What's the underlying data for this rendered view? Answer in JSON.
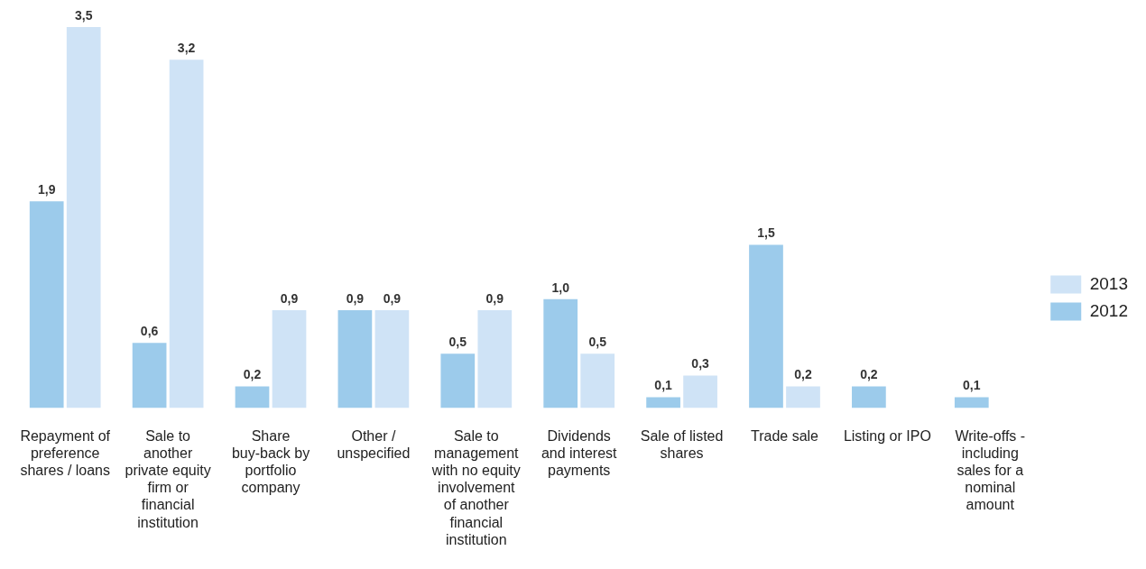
{
  "chart_data": {
    "type": "bar",
    "categories": [
      "Repayment of preference shares / loans",
      "Sale to another private equity firm or financial institution",
      "Share buy-back by portfolio company",
      "Other / unspecified",
      "Sale to management with no equity involvement of another financial institution",
      "Dividends and interest payments",
      "Sale of listed shares",
      "Trade sale",
      "Listing or IPO",
      "Write-offs - including sales for a nominal amount"
    ],
    "series": [
      {
        "name": "2012",
        "color": "#9ccbeb",
        "values": [
          1.9,
          0.6,
          0.2,
          0.9,
          0.5,
          1.0,
          0.1,
          1.5,
          0.2,
          0.1
        ],
        "value_labels": [
          "1,9",
          "0,6",
          "0,2",
          "0,9",
          "0,5",
          "1,0",
          "0,1",
          "1,5",
          "0,2",
          "0,1"
        ]
      },
      {
        "name": "2013",
        "color": "#cfe3f6",
        "values": [
          3.5,
          3.2,
          0.9,
          0.9,
          0.9,
          0.5,
          0.3,
          0.2,
          null,
          null
        ],
        "value_labels": [
          "3,5",
          "3,2",
          "0,9",
          "0,9",
          "0,9",
          "0,5",
          "0,3",
          "0,2",
          null,
          null
        ]
      }
    ],
    "ylim": [
      0,
      3.5
    ],
    "legend": "right",
    "grid": false
  }
}
